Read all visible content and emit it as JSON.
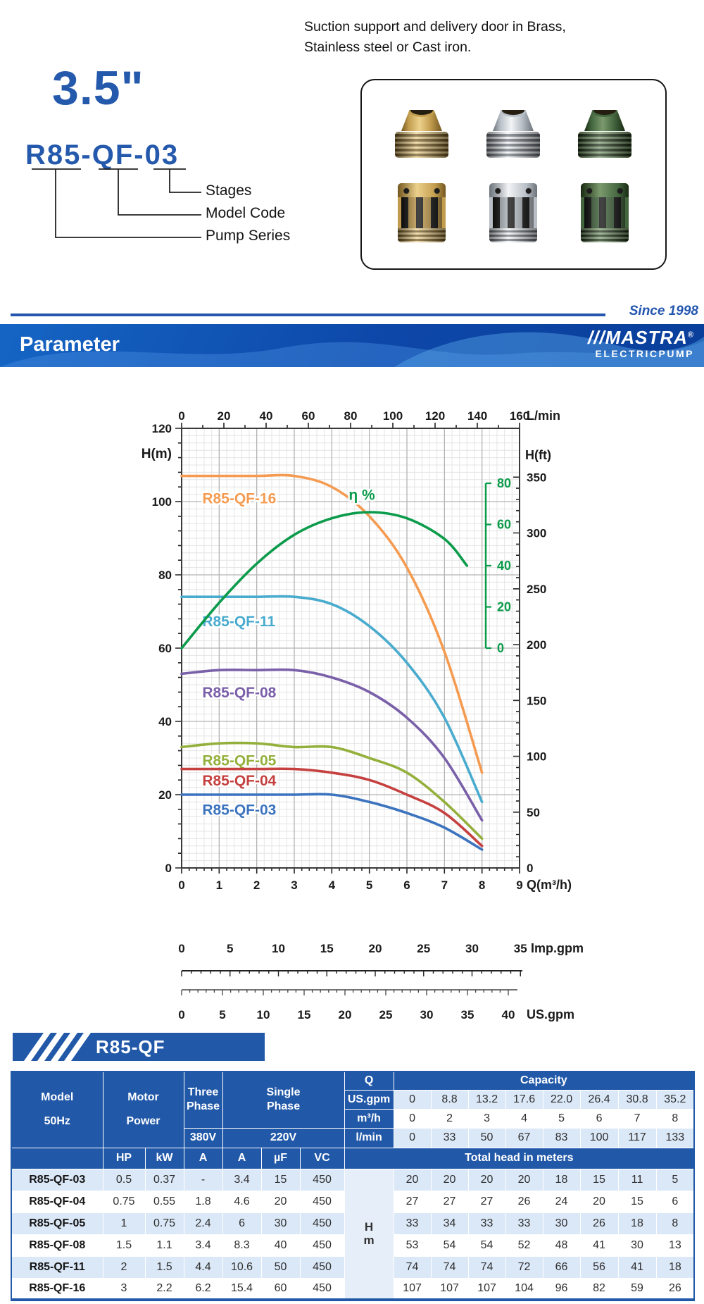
{
  "header": {
    "size_label": "3.5\"",
    "model_example": "R85-QF-03",
    "callouts": [
      "Stages",
      "Model Code",
      "Pump Series"
    ],
    "description_line1": "Suction support and delivery door in Brass,",
    "description_line2": "Stainless steel or Cast iron.",
    "materials": [
      "brass",
      "stainless-steel",
      "cast-iron"
    ]
  },
  "brand": {
    "since": "Since 1998",
    "section_title": "Parameter",
    "logo_stripes": "///",
    "logo_text": "MASTRA",
    "registered": "®",
    "logo_sub": "ELECTRICPUMP",
    "accent_blue": "#2158a8"
  },
  "series_banner": "R85-QF",
  "chart_data": {
    "type": "line",
    "x": [
      0,
      1,
      2,
      3,
      4,
      5,
      6,
      7,
      8
    ],
    "xlabel": "Q(m³/h)",
    "bottom_ticks": [
      0,
      1,
      2,
      3,
      4,
      5,
      6,
      7,
      8,
      9
    ],
    "top_axis": {
      "label": "L/min",
      "ticks": [
        0,
        20,
        40,
        60,
        80,
        100,
        120,
        140,
        160
      ]
    },
    "left_axis": {
      "label": "H(m)",
      "min": 0,
      "max": 120,
      "ticks": [
        0,
        20,
        40,
        60,
        80,
        100,
        120
      ]
    },
    "right_axis": {
      "label": "H(ft)",
      "ticks": [
        0,
        50,
        100,
        150,
        200,
        250,
        300,
        350
      ]
    },
    "eff_axis": {
      "label": "η %",
      "ticks": [
        0,
        20,
        40,
        60,
        80
      ]
    },
    "imp_axis": {
      "label": "Imp.gpm",
      "ticks": [
        0,
        5,
        10,
        15,
        20,
        25,
        30,
        35
      ]
    },
    "us_axis": {
      "label": "US.gpm",
      "ticks": [
        0,
        5,
        10,
        15,
        20,
        25,
        30,
        35,
        40
      ]
    },
    "grid": "on",
    "series": [
      {
        "name": "R85-QF-16",
        "color": "#F59B51",
        "values": [
          107,
          107,
          107,
          107,
          104,
          96,
          82,
          59,
          26
        ],
        "label_at": [
          0.55,
          99.5
        ]
      },
      {
        "name": "R85-QF-11",
        "color": "#49ABCE",
        "values": [
          74,
          74,
          74,
          74,
          72,
          66,
          56,
          41,
          18
        ],
        "label_at": [
          0.55,
          66
        ]
      },
      {
        "name": "R85-QF-08",
        "color": "#7A5FA9",
        "values": [
          53,
          54,
          54,
          54,
          52,
          48,
          41,
          30,
          13
        ],
        "label_at": [
          0.55,
          46.5
        ]
      },
      {
        "name": "R85-QF-05",
        "color": "#94B03C",
        "values": [
          33,
          34,
          34,
          33,
          33,
          30,
          26,
          18,
          8
        ],
        "label_at": [
          0.55,
          28
        ]
      },
      {
        "name": "R85-QF-04",
        "color": "#C5403F",
        "values": [
          27,
          27,
          27,
          27,
          26,
          24,
          20,
          15,
          6
        ],
        "label_at": [
          0.55,
          22.5
        ]
      },
      {
        "name": "R85-QF-03",
        "color": "#3C73BE",
        "values": [
          20,
          20,
          20,
          20,
          20,
          18,
          15,
          11,
          5
        ],
        "label_at": [
          0.55,
          14.5
        ]
      }
    ],
    "efficiency": {
      "name": "η %",
      "color": "#0B9B4B",
      "x": [
        0,
        1,
        2,
        3,
        4,
        5,
        6,
        7,
        7.6
      ],
      "values": [
        0,
        22,
        41,
        55,
        63,
        66,
        63,
        53,
        40
      ],
      "label_at": [
        4.45,
        100.5
      ]
    }
  },
  "table": {
    "header": {
      "model_l1": "Model",
      "model_l2": "50Hz",
      "motor_l1": "Motor",
      "motor_l2": "Power",
      "three_l1": "Three",
      "three_l2": "Phase",
      "single_l1": "Single",
      "single_l2": "Phase",
      "v380": "380V",
      "v220": "220V",
      "q": "Q",
      "capacity": "Capacity",
      "us_gpm": "US.gpm",
      "m3h": "m³/h",
      "lmin": "l/min",
      "hp": "HP",
      "kw": "kW",
      "a3": "A",
      "a1": "A",
      "uf": "µF",
      "vc": "VC",
      "total_head": "Total head in meters",
      "hm_l1": "H",
      "hm_l2": "m"
    },
    "capacity_rows": {
      "us_gpm": [
        "0",
        "8.8",
        "13.2",
        "17.6",
        "22.0",
        "26.4",
        "30.8",
        "35.2"
      ],
      "m3h": [
        "0",
        "2",
        "3",
        "4",
        "5",
        "6",
        "7",
        "8"
      ],
      "lmin": [
        "0",
        "33",
        "50",
        "67",
        "83",
        "100",
        "117",
        "133"
      ]
    },
    "rows": [
      {
        "model": "R85-QF-03",
        "hp": "0.5",
        "kw": "0.37",
        "a3": "-",
        "a1": "3.4",
        "uf": "15",
        "vc": "450",
        "heads": [
          "20",
          "20",
          "20",
          "20",
          "18",
          "15",
          "11",
          "5"
        ]
      },
      {
        "model": "R85-QF-04",
        "hp": "0.75",
        "kw": "0.55",
        "a3": "1.8",
        "a1": "4.6",
        "uf": "20",
        "vc": "450",
        "heads": [
          "27",
          "27",
          "27",
          "26",
          "24",
          "20",
          "15",
          "6"
        ]
      },
      {
        "model": "R85-QF-05",
        "hp": "1",
        "kw": "0.75",
        "a3": "2.4",
        "a1": "6",
        "uf": "30",
        "vc": "450",
        "heads": [
          "33",
          "34",
          "33",
          "33",
          "30",
          "26",
          "18",
          "8"
        ]
      },
      {
        "model": "R85-QF-08",
        "hp": "1.5",
        "kw": "1.1",
        "a3": "3.4",
        "a1": "8.3",
        "uf": "40",
        "vc": "450",
        "heads": [
          "53",
          "54",
          "54",
          "52",
          "48",
          "41",
          "30",
          "13"
        ]
      },
      {
        "model": "R85-QF-11",
        "hp": "2",
        "kw": "1.5",
        "a3": "4.4",
        "a1": "10.6",
        "uf": "50",
        "vc": "450",
        "heads": [
          "74",
          "74",
          "74",
          "72",
          "66",
          "56",
          "41",
          "18"
        ]
      },
      {
        "model": "R85-QF-16",
        "hp": "3",
        "kw": "2.2",
        "a3": "6.2",
        "a1": "15.4",
        "uf": "60",
        "vc": "450",
        "heads": [
          "107",
          "107",
          "107",
          "104",
          "96",
          "82",
          "59",
          "26"
        ]
      }
    ]
  }
}
